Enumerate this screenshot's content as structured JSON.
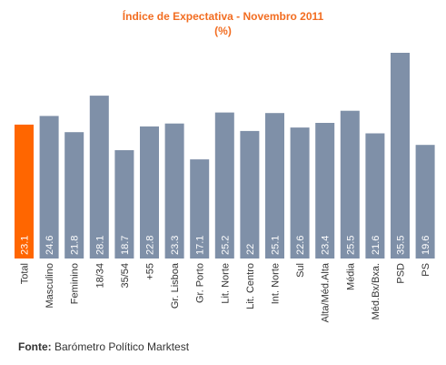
{
  "chart_data": {
    "type": "bar",
    "title": "Índice de Expectativa - Novembro 2011",
    "subtitle": "(%)",
    "categories": [
      "Total",
      "Masculino",
      "Feminino",
      "18/34",
      "35/54",
      "+55",
      "Gr. Lisboa",
      "Gr. Porto",
      "Lit. Norte",
      "Lit. Centro",
      "Int. Norte",
      "Sul",
      "Alta/Méd.Alta",
      "Média",
      "Méd.Bx/Bxa.",
      "PSD",
      "PS"
    ],
    "values": [
      23.1,
      24.6,
      21.8,
      28.1,
      18.7,
      22.8,
      23.3,
      17.1,
      25.2,
      22,
      25.1,
      22.6,
      23.4,
      25.5,
      21.6,
      35.5,
      19.6
    ],
    "value_labels": [
      "23.1",
      "24.6",
      "21.8",
      "28.1",
      "18.7",
      "22.8",
      "23.3",
      "17.1",
      "25.2",
      "22",
      "25.1",
      "22.6",
      "23.4",
      "25.5",
      "21.6",
      "35.5",
      "19.6"
    ],
    "highlight_index": 0,
    "colors": {
      "highlight": "#ff6600",
      "bar": "#7f90a8",
      "title": "#f26d21",
      "label": "#ffffff",
      "axis_text": "#333333"
    },
    "ylim": [
      0,
      35.5
    ],
    "grid": false,
    "legend": "none"
  },
  "source": {
    "label": "Fonte:",
    "text": "Barómetro Político Marktest"
  }
}
